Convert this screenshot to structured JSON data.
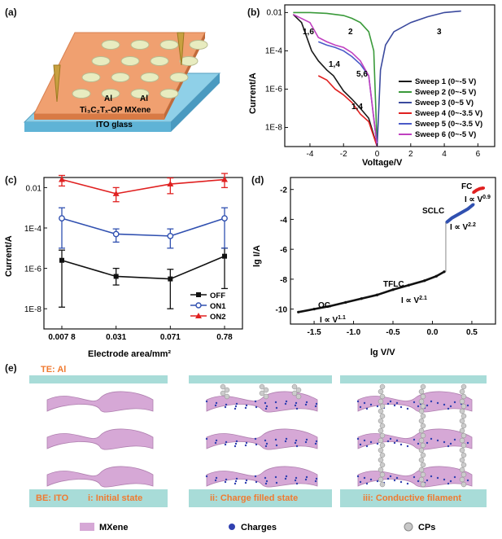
{
  "panels": {
    "a": {
      "label": "(a)",
      "al_labels": [
        "Al",
        "Al"
      ],
      "mxene_label": "Ti₃C₂Tₓ-OP MXene",
      "ito_label": "ITO glass"
    },
    "b": {
      "label": "(b)",
      "ylabel": "Current/A",
      "xlabel": "Voltage/V",
      "x_ticks": [
        "-4",
        "-2",
        "0",
        "2",
        "4",
        "6"
      ],
      "y_ticks": [
        "0.01",
        "1E-4",
        "1E-6",
        "1E-8"
      ],
      "annotations": [
        "1,6",
        "2",
        "3",
        "1,4",
        "5,6",
        "1,4"
      ],
      "legend": [
        "Sweep 1 (0~-5 V)",
        "Sweep 2 (0~-5 V)",
        "Sweep 3 (0~5 V)",
        "Sweep 4 (0~-3.5 V)",
        "Sweep 5 (0~-3.5 V)",
        "Sweep 6 (0~-5 V)"
      ],
      "colors": [
        "#1a1a1a",
        "#3a9a3a",
        "#3b4a9e",
        "#e02020",
        "#4a5ac8",
        "#c040c0"
      ]
    },
    "c": {
      "label": "(c)",
      "ylabel": "Current/A",
      "xlabel": "Electrode area/mm²",
      "x_ticks": [
        "0.007 8",
        "0.031",
        "0.071",
        "0.78"
      ],
      "y_ticks": [
        "0.01",
        "1E-4",
        "1E-6",
        "1E-8"
      ],
      "legend": [
        "OFF",
        "ON1",
        "ON2"
      ],
      "colors": [
        "#111111",
        "#3050b0",
        "#e02020"
      ]
    },
    "d": {
      "label": "(d)",
      "ylabel": "lg I/A",
      "xlabel": "lg V/V",
      "x_ticks": [
        "-1.5",
        "-1.0",
        "-0.5",
        "0.0",
        "0.5"
      ],
      "y_ticks": [
        "-2",
        "-4",
        "-6",
        "-8",
        "-10"
      ],
      "region_labels": [
        "OC",
        "TFLC",
        "SCLC",
        "FC"
      ],
      "fit_labels": [
        "I ∝ V",
        "I ∝ V",
        "I ∝ V",
        "I ∝ V"
      ],
      "fit_exponents": [
        "1.1",
        "2.1",
        "2.2",
        "0.9"
      ]
    },
    "e": {
      "label": "(e)",
      "te_label": "TE: Al",
      "be_label": "BE: ITO",
      "states": [
        "i: Initial state",
        "ii: Charge filled state",
        "iii: Conductive filament"
      ],
      "legend": [
        "MXene",
        "Charges",
        "CPs"
      ]
    }
  },
  "chart_data": [
    {
      "panel": "b",
      "type": "line",
      "xlabel": "Voltage/V",
      "ylabel": "Current/A",
      "xlim": [
        -5.5,
        7
      ],
      "ylim_log10": [
        -9,
        -1.6
      ],
      "y_scale": "log",
      "series": [
        {
          "name": "Sweep 1 (0~-5 V)",
          "x": [
            0,
            -0.5,
            -1,
            -1.5,
            -2,
            -2.3,
            -2.6,
            -3,
            -3.5,
            -3.9,
            -4.5,
            -5
          ],
          "y": [
            1e-09,
            3e-08,
            1e-07,
            3e-07,
            8e-07,
            2e-06,
            5e-06,
            1e-05,
            3e-05,
            0.0001,
            0.003,
            0.008
          ]
        },
        {
          "name": "Sweep 2 (0~-5 V)",
          "x": [
            -5,
            -4,
            -3,
            -2,
            -1.5,
            -1,
            -0.5,
            -0.2,
            0
          ],
          "y": [
            0.01,
            0.01,
            0.009,
            0.007,
            0.005,
            0.003,
            0.001,
            0.0001,
            1e-09
          ]
        },
        {
          "name": "Sweep 3 (0~5 V)",
          "x": [
            0,
            0.2,
            0.5,
            1,
            2,
            3,
            4,
            5
          ],
          "y": [
            1e-09,
            1e-05,
            0.0002,
            0.001,
            0.003,
            0.006,
            0.01,
            0.012
          ]
        },
        {
          "name": "Sweep 4 (0~-3.5 V)",
          "x": [
            0,
            -0.5,
            -1,
            -1.5,
            -2,
            -2.5,
            -3,
            -3.5
          ],
          "y": [
            1e-09,
            2e-08,
            5e-08,
            2e-07,
            5e-07,
            1e-06,
            3e-06,
            5e-06
          ]
        },
        {
          "name": "Sweep 5 (0~-3.5 V)",
          "x": [
            -3.5,
            -3,
            -2.5,
            -2,
            -1.5,
            -1,
            -0.5,
            0
          ],
          "y": [
            0.0003,
            0.0002,
            0.00015,
            0.0001,
            5e-05,
            2e-05,
            5e-06,
            1e-09
          ]
        },
        {
          "name": "Sweep 6 (0~-5 V)",
          "x": [
            -5,
            -4,
            -3.5,
            -3,
            -2.5,
            -2,
            -1.5,
            -1,
            -0.5,
            0
          ],
          "y": [
            0.008,
            0.003,
            0.0005,
            0.0003,
            0.0002,
            0.00015,
            8e-05,
            3e-05,
            5e-06,
            1e-09
          ]
        }
      ]
    },
    {
      "panel": "c",
      "type": "line",
      "xlabel": "Electrode area/mm²",
      "ylabel": "Current/A",
      "categories": [
        "0.007 8",
        "0.031",
        "0.071",
        "0.78"
      ],
      "y_scale": "log",
      "ylim_log10": [
        -9,
        -1.5
      ],
      "series": [
        {
          "name": "OFF",
          "values": [
            2.5e-06,
            4e-07,
            3e-07,
            4e-06
          ],
          "err_low": [
            1.2e-08,
            1.5e-07,
            1e-08,
            1e-07
          ],
          "err_high": [
            8e-06,
            1e-06,
            9e-07,
            1e-05
          ]
        },
        {
          "name": "ON1",
          "values": [
            0.0003,
            5e-05,
            4e-05,
            0.0003
          ],
          "err_low": [
            1e-05,
            2e-05,
            1e-05,
            1e-05
          ],
          "err_high": [
            0.001,
            9e-05,
            9e-05,
            0.001
          ]
        },
        {
          "name": "ON2",
          "values": [
            0.025,
            0.005,
            0.015,
            0.025
          ],
          "err_low": [
            0.012,
            0.002,
            0.005,
            0.01
          ],
          "err_high": [
            0.04,
            0.01,
            0.03,
            0.05
          ]
        }
      ]
    },
    {
      "panel": "d",
      "type": "scatter",
      "xlabel": "lg V/V",
      "ylabel": "lg I/A",
      "xlim": [
        -1.8,
        0.8
      ],
      "ylim": [
        -11,
        -1.2
      ],
      "series": [
        {
          "name": "OC",
          "x": [
            -1.7,
            -1.5,
            -1.3,
            -1.1,
            -0.9,
            -0.7
          ],
          "y": [
            -10.2,
            -10.0,
            -9.8,
            -9.55,
            -9.3,
            -9.05
          ]
        },
        {
          "name": "TFLC",
          "x": [
            -0.7,
            -0.5,
            -0.3,
            -0.1,
            0.05,
            0.15
          ],
          "y": [
            -9.05,
            -8.7,
            -8.4,
            -8.1,
            -7.8,
            -7.5
          ]
        },
        {
          "name": "SCLC",
          "x": [
            0.18,
            0.25,
            0.35,
            0.45,
            0.52
          ],
          "y": [
            -4.2,
            -3.9,
            -3.6,
            -3.3,
            -3.0
          ]
        },
        {
          "name": "FC",
          "x": [
            0.52,
            0.56,
            0.6,
            0.65
          ],
          "y": [
            -2.2,
            -2.05,
            -1.95,
            -1.9
          ]
        }
      ]
    }
  ]
}
